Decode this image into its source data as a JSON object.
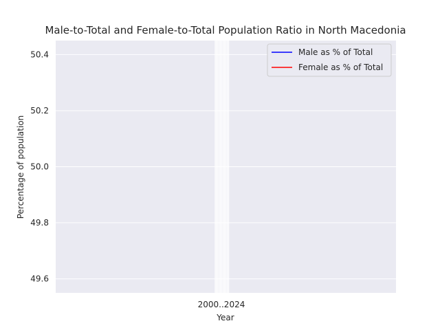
{
  "chart_data": {
    "type": "line",
    "title": "Male-to-Total and Female-to-Total Population Ratio in North Macedonia",
    "xlabel": "Year",
    "ylabel": "Percentage of population",
    "ylim": [
      49.55,
      50.45
    ],
    "y_ticks": [
      "49.6",
      "49.8",
      "50.0",
      "50.2",
      "50.4"
    ],
    "x_tick_text": "2000..2024",
    "grid": true,
    "legend_position": "top-right",
    "series": [
      {
        "name": "Male as % of Total",
        "color": "#0000ff",
        "values": []
      },
      {
        "name": "Female as % of Total",
        "color": "#ff0000",
        "values": []
      }
    ]
  },
  "colors": {
    "plot_background": "#eaeaf2",
    "grid": "#ffffff",
    "text": "#262626"
  }
}
